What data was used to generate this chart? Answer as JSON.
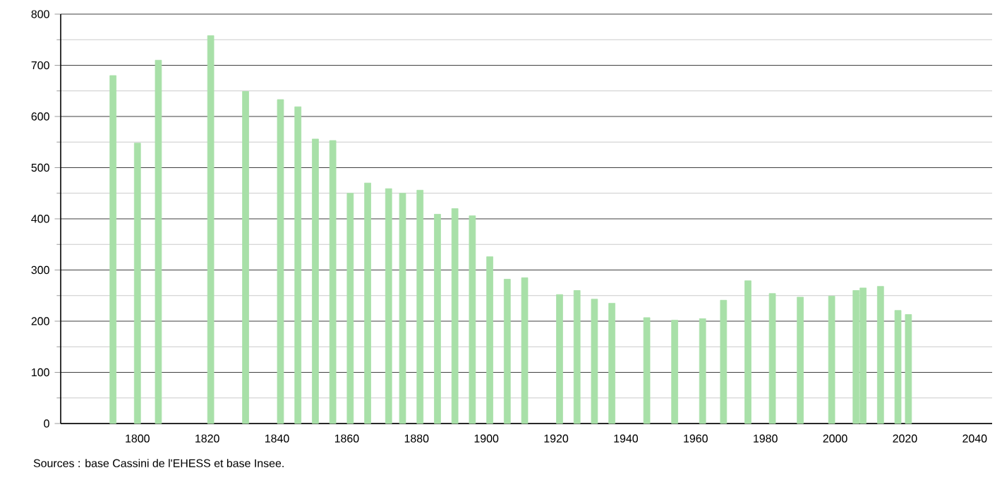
{
  "chart_data": {
    "type": "bar",
    "color": "#a8e0a8",
    "x": [
      1793,
      1800,
      1806,
      1821,
      1831,
      1841,
      1846,
      1851,
      1856,
      1861,
      1866,
      1872,
      1876,
      1881,
      1886,
      1891,
      1896,
      1901,
      1906,
      1911,
      1921,
      1926,
      1931,
      1936,
      1946,
      1954,
      1962,
      1968,
      1975,
      1982,
      1990,
      1999,
      2006,
      2008,
      2013,
      2018,
      2021
    ],
    "values": [
      680,
      548,
      710,
      758,
      649,
      633,
      619,
      556,
      553,
      450,
      470,
      459,
      450,
      456,
      409,
      420,
      406,
      326,
      282,
      285,
      252,
      260,
      243,
      235,
      207,
      202,
      205,
      241,
      279,
      254,
      247,
      249,
      260,
      265,
      268,
      221,
      213
    ],
    "xlim": [
      1778,
      2045
    ],
    "ylim": [
      0,
      800
    ],
    "xticks": [
      1800,
      1820,
      1840,
      1860,
      1880,
      1900,
      1920,
      1940,
      1960,
      1980,
      2000,
      2020,
      2040
    ],
    "yticks": [
      0,
      100,
      200,
      300,
      400,
      500,
      600,
      700,
      800
    ],
    "grid": "y",
    "annotations": [
      "Sources : base Cassini de l'EHESS et base Insee."
    ]
  }
}
